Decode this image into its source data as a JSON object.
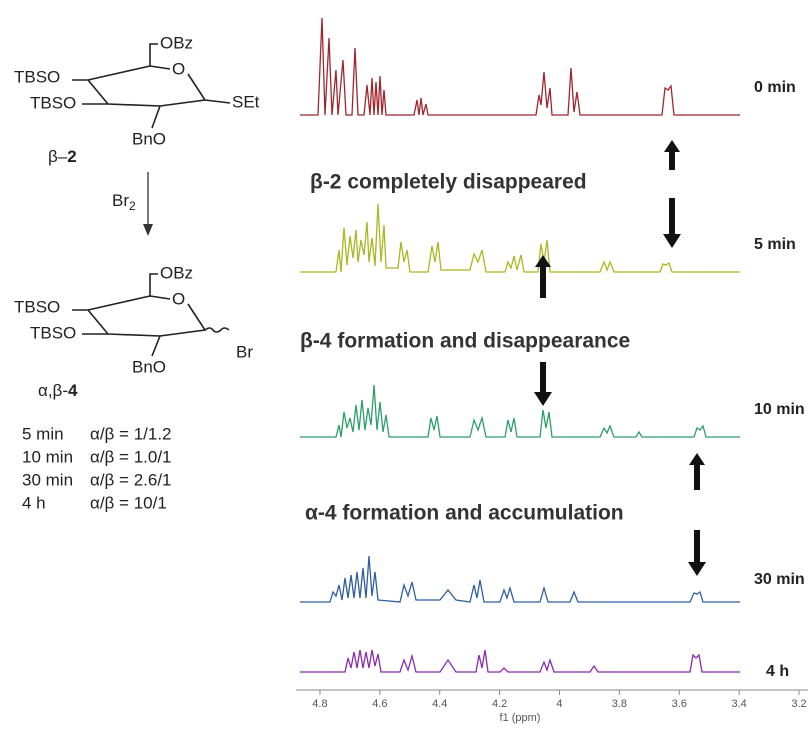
{
  "scheme": {
    "start": {
      "groups": {
        "c6": "OBz",
        "ring_o": "O",
        "c4": "TBSO",
        "c3": "TBSO",
        "c1": "SEt",
        "c2": "BnO"
      },
      "label_prefix": "β–",
      "label_number": "2"
    },
    "reagent": {
      "symbol": "Br",
      "subscript": "2"
    },
    "product": {
      "groups": {
        "c6": "OBz",
        "ring_o": "O",
        "c4": "TBSO",
        "c3": "TBSO",
        "c1": "Br",
        "c2": "BnO"
      },
      "label_prefix": "α,β-",
      "label_number": "4"
    },
    "ratios": [
      [
        "5 min",
        "α/β = 1/1.2"
      ],
      [
        "10 min",
        "α/β = 1.0/1"
      ],
      [
        "30 min",
        "α/β = 2.6/1"
      ],
      [
        "4 h",
        "α/β = 10/1"
      ]
    ]
  },
  "spectra": {
    "traces": [
      {
        "label": "0 min",
        "color": "#a0262b"
      },
      {
        "label": "5 min",
        "color": "#a8b820"
      },
      {
        "label": "10 min",
        "color": "#2e9e6a"
      },
      {
        "label": "30 min",
        "color": "#2f5fa0"
      },
      {
        "label": "4 h",
        "color": "#8a2ba8"
      }
    ],
    "annotations": [
      "β-2 completely disappeared",
      "β-4 formation and disappearance",
      "α-4 formation and accumulation"
    ],
    "xaxis": {
      "label": "f1 (ppm)",
      "xlim": [
        4.88,
        3.17
      ],
      "ticks": [
        4.8,
        4.6,
        4.4,
        4.2,
        4.0,
        3.8,
        3.6,
        3.4,
        3.2
      ]
    }
  }
}
